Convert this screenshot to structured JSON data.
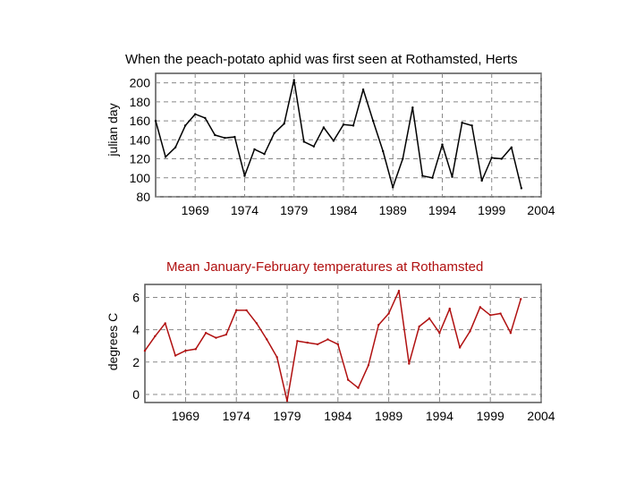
{
  "chart_data": [
    {
      "type": "line",
      "title": "When the peach-potato aphid was first seen at Rothamsted, Herts",
      "xlabel": "",
      "ylabel": "julian day",
      "xlim": [
        1965,
        2004
      ],
      "ylim": [
        80,
        210
      ],
      "grid": true,
      "line_color": "#000000",
      "title_color": "#000000",
      "xticks": [
        1969,
        1974,
        1979,
        1984,
        1989,
        1994,
        1999,
        2004
      ],
      "yticks": [
        80,
        100,
        120,
        140,
        160,
        180,
        200
      ],
      "x": [
        1965,
        1966,
        1967,
        1968,
        1969,
        1970,
        1971,
        1972,
        1973,
        1974,
        1975,
        1976,
        1977,
        1978,
        1979,
        1980,
        1981,
        1982,
        1983,
        1984,
        1985,
        1986,
        1987,
        1988,
        1989,
        1990,
        1991,
        1992,
        1993,
        1994,
        1995,
        1996,
        1997,
        1998,
        1999,
        2000,
        2001,
        2002
      ],
      "values": [
        160,
        122,
        132,
        155,
        167,
        163,
        145,
        142,
        143,
        102,
        130,
        125,
        147,
        157,
        203,
        138,
        133,
        153,
        139,
        156,
        155,
        193,
        160,
        128,
        90,
        120,
        174,
        102,
        100,
        135,
        101,
        158,
        155,
        97,
        121,
        120,
        132,
        89
      ]
    },
    {
      "type": "line",
      "title": "Mean January-February temperatures at Rothamsted",
      "xlabel": "",
      "ylabel": "degrees C",
      "xlim": [
        1965,
        2004
      ],
      "ylim": [
        -0.5,
        6.8
      ],
      "grid": true,
      "line_color": "#b01010",
      "title_color": "#b01010",
      "xticks": [
        1969,
        1974,
        1979,
        1984,
        1989,
        1994,
        1999,
        2004
      ],
      "yticks": [
        0,
        2,
        4,
        6
      ],
      "x": [
        1965,
        1966,
        1967,
        1968,
        1969,
        1970,
        1971,
        1972,
        1973,
        1974,
        1975,
        1976,
        1977,
        1978,
        1979,
        1980,
        1981,
        1982,
        1983,
        1984,
        1985,
        1986,
        1987,
        1988,
        1989,
        1990,
        1991,
        1992,
        1993,
        1994,
        1995,
        1996,
        1997,
        1998,
        1999,
        2000,
        2001,
        2002
      ],
      "values": [
        2.7,
        3.6,
        4.4,
        2.4,
        2.7,
        2.8,
        3.8,
        3.5,
        3.7,
        5.2,
        5.2,
        4.4,
        3.4,
        2.3,
        -0.4,
        3.3,
        3.2,
        3.1,
        3.4,
        3.1,
        0.9,
        0.4,
        1.8,
        4.3,
        5.0,
        6.4,
        1.9,
        4.2,
        4.7,
        3.8,
        5.3,
        2.9,
        3.9,
        5.4,
        4.9,
        5.0,
        3.8,
        5.9
      ]
    }
  ]
}
